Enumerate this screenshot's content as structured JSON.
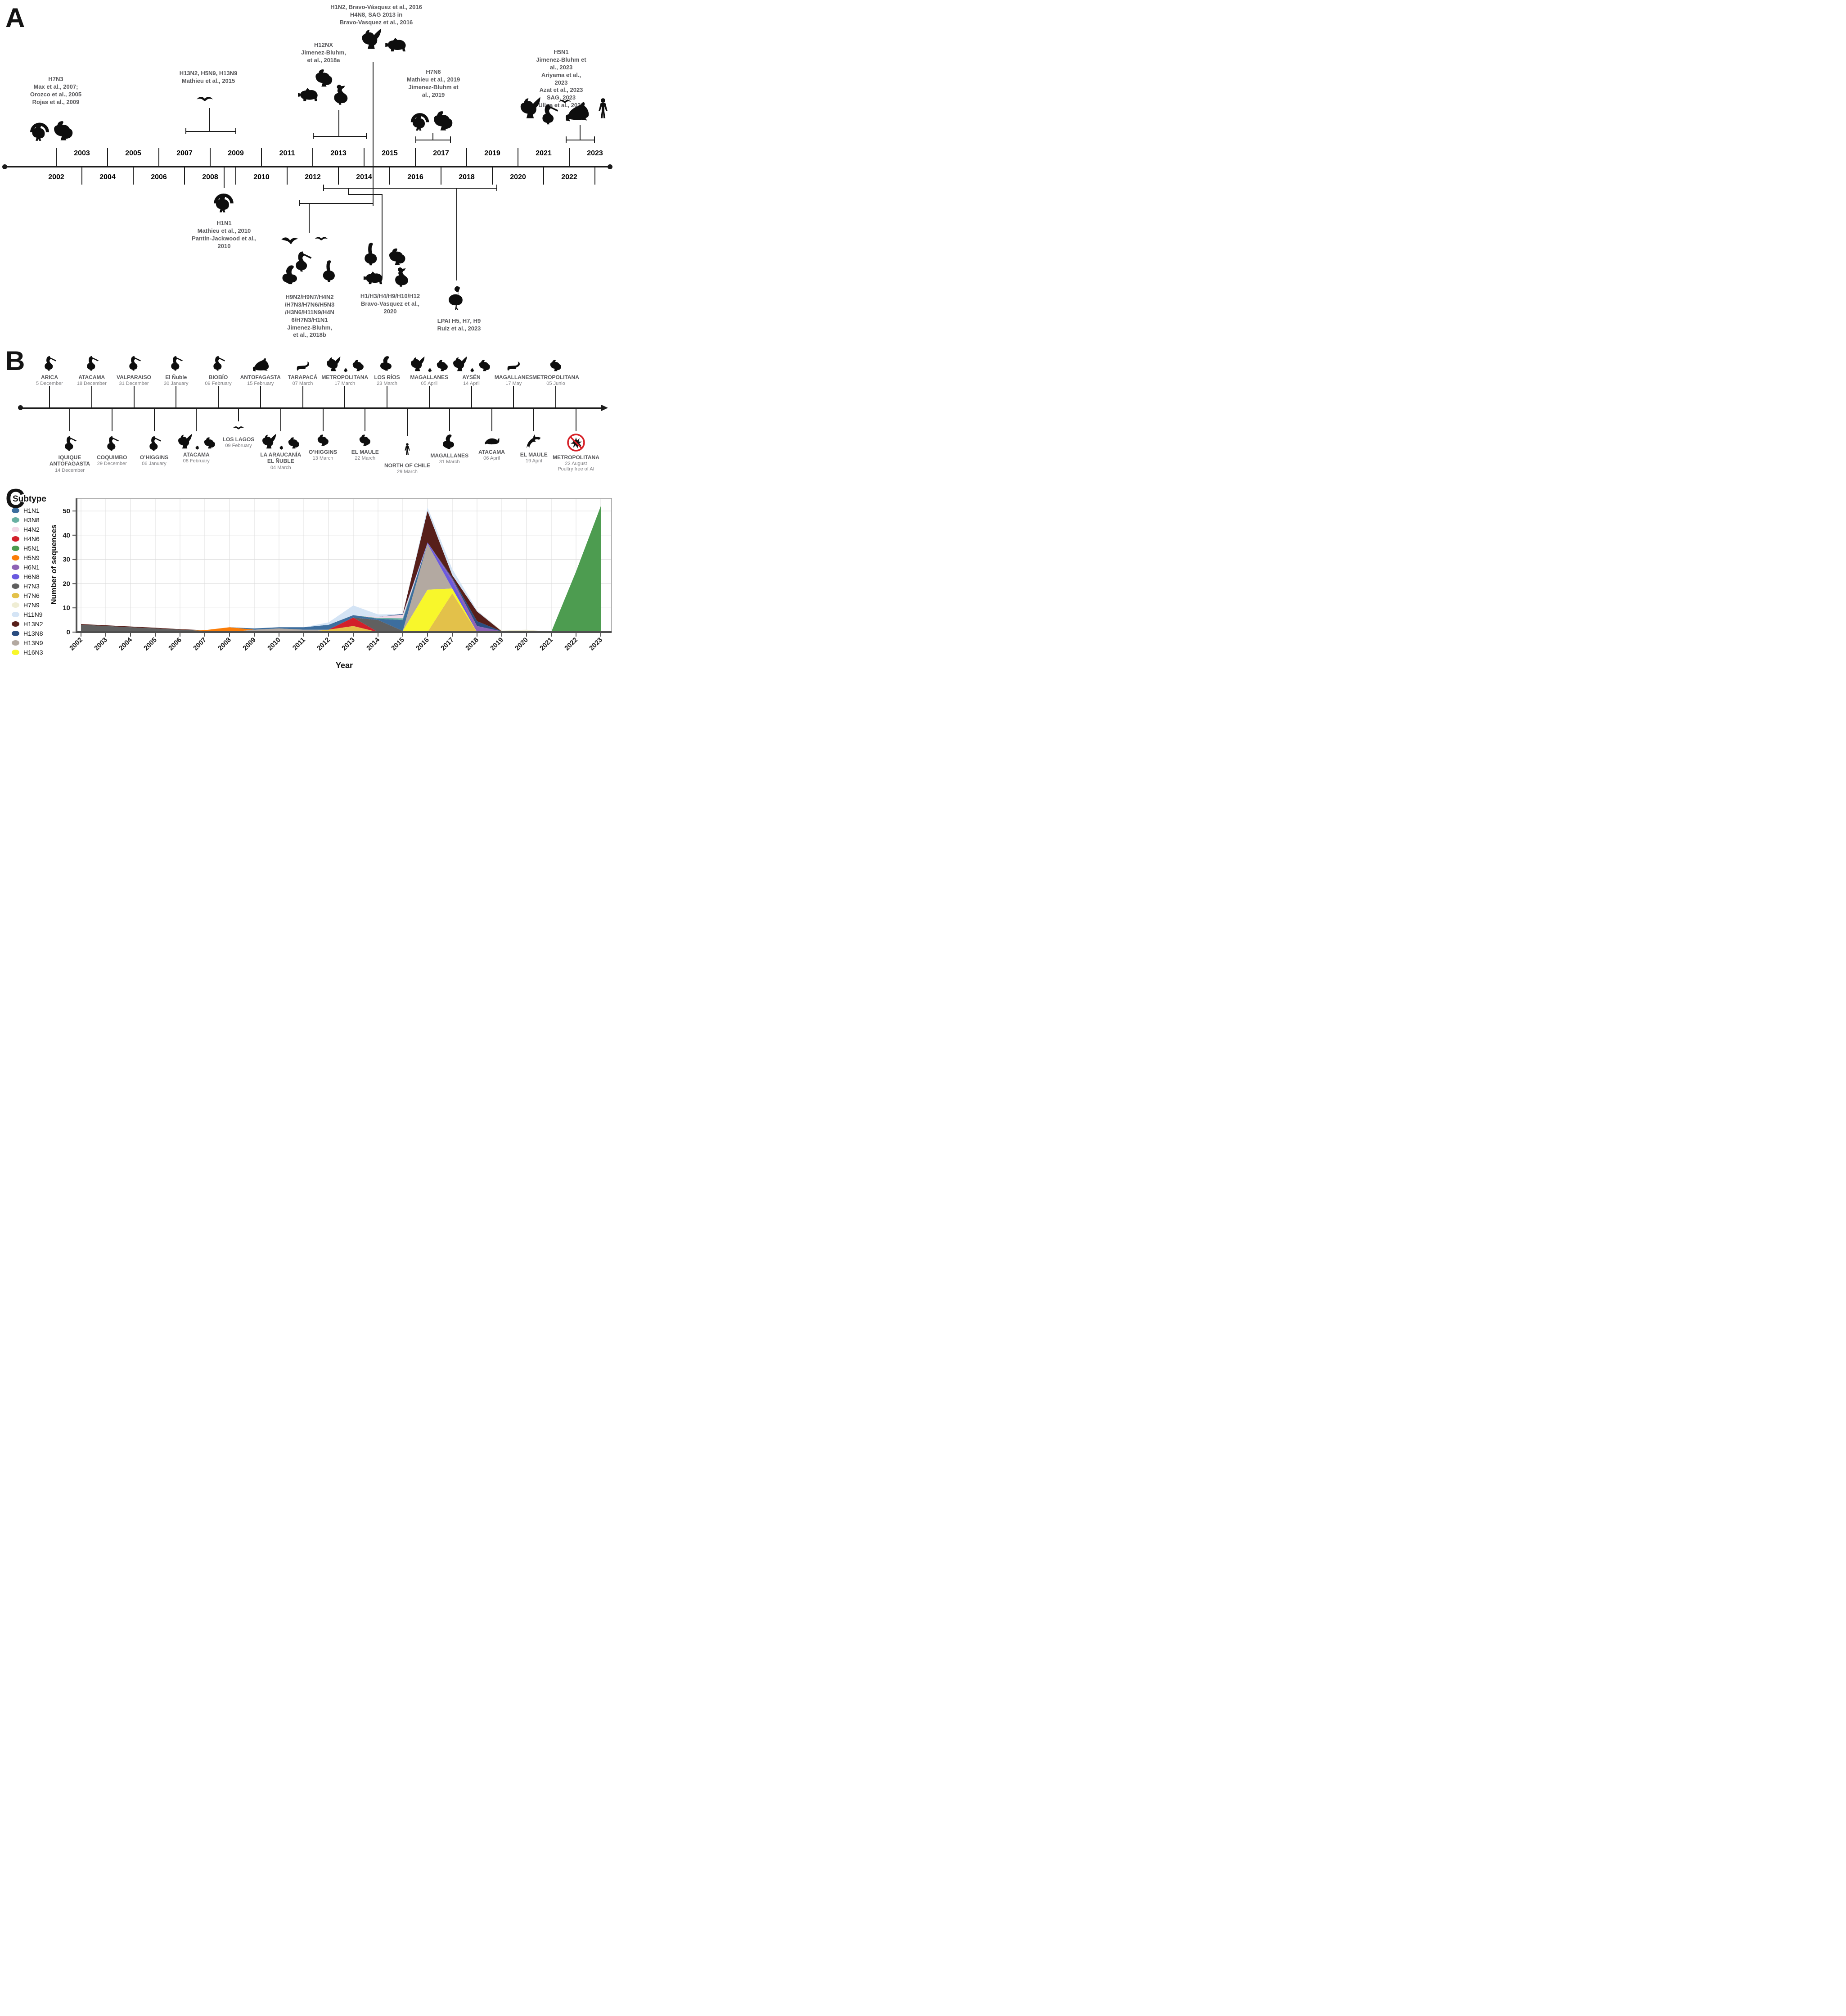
{
  "panelA": {
    "label": "A",
    "years": [
      "2002",
      "2003",
      "2004",
      "2005",
      "2006",
      "2007",
      "2008",
      "2009",
      "2010",
      "2011",
      "2012",
      "2013",
      "2014",
      "2015",
      "2016",
      "2017",
      "2018",
      "2019",
      "2020",
      "2021",
      "2022",
      "2023"
    ],
    "groups": {
      "h7n3": {
        "lines": [
          "H7N3",
          "Max et al., 2007;",
          "Orozco et al., 2005",
          "Rojas et al., 2009"
        ],
        "animals": [
          "turkey",
          "hen"
        ]
      },
      "mathieu2015": {
        "lines": [
          "H13N2, H5N9, H13N9",
          "Mathieu et al., 2015"
        ],
        "animals": [
          "gull"
        ]
      },
      "h12nx": {
        "lines": [
          "H12NX",
          "Jimenez-Bluhm,",
          "et al., 2018a"
        ],
        "animals": [
          "hen",
          "pig",
          "duck"
        ]
      },
      "h1n2": {
        "lines": [
          "H1N2, Bravo-Vásquez et al., 2016",
          "H4N8, SAG 2013 in",
          "Bravo-Vasquez et al., 2016"
        ],
        "animals": [
          "rooster",
          "pig"
        ]
      },
      "h7n6": {
        "lines": [
          "H7N6",
          "Mathieu et al., 2019",
          "Jimenez-Bluhm et",
          "al., 2019"
        ],
        "animals": [
          "turkey",
          "hen"
        ]
      },
      "h5n1": {
        "lines": [
          "H5N1",
          "Jimenez-Bluhm et al., 2023",
          "Ariyama et al., 2023",
          "Azat et al., 2023",
          "SAG, 2023",
          "Ulloa et al., 2023"
        ],
        "animals": [
          "rooster",
          "pelican",
          "gull",
          "sea-lion",
          "human"
        ]
      },
      "h1n1": {
        "lines": [
          "H1N1",
          "Mathieu et al., 2010",
          "Pantin-Jackwood et al.,",
          "2010"
        ],
        "animals": [
          "turkey"
        ]
      },
      "jb2018b": {
        "lines": [
          "H9N2/H9N7/H4N2",
          "/H7N3/H7N6/H5N3",
          "/H3N6/H11N9/H4N",
          "6/H7N3/H1N1",
          "Jimenez-Bluhm,",
          "et al., 2018b"
        ],
        "animals": [
          "flying-bird",
          "gull",
          "pelican",
          "swan",
          "goose"
        ]
      },
      "bv2020": {
        "lines": [
          "H1/H3/H4/H9/H10/H12",
          "Bravo-Vasquez et al.,",
          "2020"
        ],
        "animals": [
          "goose",
          "hen",
          "pig",
          "duck"
        ]
      },
      "ruiz2023": {
        "lines": [
          "LPAI H5, H7, H9",
          "Ruiz et al., 2023"
        ],
        "animals": [
          "flamingo"
        ]
      }
    }
  },
  "panelB": {
    "label": "B",
    "top": [
      {
        "region": [
          "ARICA"
        ],
        "date": "5 December",
        "animals": [
          "pelican"
        ]
      },
      {
        "region": [
          "ATACAMA"
        ],
        "date": "18 December",
        "animals": [
          "pelican"
        ]
      },
      {
        "region": [
          "VALPARAISO"
        ],
        "date": "31 December",
        "animals": [
          "pelican"
        ]
      },
      {
        "region": [
          "El Ñuble"
        ],
        "date": "30 January",
        "animals": [
          "pelican"
        ]
      },
      {
        "region": [
          "BIOBÍO"
        ],
        "date": "09 February",
        "animals": [
          "pelican"
        ]
      },
      {
        "region": [
          "ANTOFAGASTA"
        ],
        "date": "15 February",
        "animals": [
          "sea-lion"
        ]
      },
      {
        "region": [
          "TARAPACÁ"
        ],
        "date": "07 March",
        "animals": [
          "otter"
        ]
      },
      {
        "region": [
          "METROPOLITANA"
        ],
        "date": "17 March",
        "animals": [
          "rooster",
          "chick",
          "hen"
        ]
      },
      {
        "region": [
          "LOS RÍOS"
        ],
        "date": "23 March",
        "animals": [
          "swan"
        ]
      },
      {
        "region": [
          "MAGALLANES"
        ],
        "date": "05 April",
        "animals": [
          "rooster",
          "chick",
          "hen"
        ]
      },
      {
        "region": [
          "AYSÉN"
        ],
        "date": "14 April",
        "animals": [
          "rooster",
          "chick",
          "hen"
        ]
      },
      {
        "region": [
          "MAGALLANES"
        ],
        "date": "17 May",
        "animals": [
          "otter"
        ]
      },
      {
        "region": [
          "METROPOLITANA"
        ],
        "date": "05 Junio",
        "animals": [
          "hen"
        ]
      }
    ],
    "bottom": [
      {
        "region": [
          "IQUIQUE",
          "ANTOFAGASTA"
        ],
        "date": "14 December",
        "animals": [
          "pelican"
        ]
      },
      {
        "region": [
          "COQUIMBO"
        ],
        "date": "29 December",
        "animals": [
          "pelican"
        ]
      },
      {
        "region": [
          "O’HIGGINS"
        ],
        "date": "06 January",
        "animals": [
          "pelican"
        ]
      },
      {
        "region": [
          "ATACAMA"
        ],
        "date": "08 February",
        "animals": [
          "rooster",
          "chick",
          "hen"
        ]
      },
      {
        "region": [
          "LOS LAGOS"
        ],
        "date": "09 February",
        "animals": [
          "gull"
        ]
      },
      {
        "region": [
          "LA ARAUCANÍA",
          "EL ÑUBLE"
        ],
        "date": "04 March",
        "animals": [
          "rooster",
          "chick",
          "hen"
        ]
      },
      {
        "region": [
          "O’HIGGINS"
        ],
        "date": "13 March",
        "animals": [
          "hen"
        ]
      },
      {
        "region": [
          "EL MAULE"
        ],
        "date": "22 March",
        "animals": [
          "hen"
        ]
      },
      {
        "region": [
          "NORTH OF CHILE"
        ],
        "date": "29 March",
        "animals": [
          "human"
        ]
      },
      {
        "region": [
          "MAGALLANES"
        ],
        "date": "31 March",
        "animals": [
          "swan"
        ]
      },
      {
        "region": [
          "ATACAMA"
        ],
        "date": "06 April",
        "animals": [
          "whale"
        ]
      },
      {
        "region": [
          "EL MAULE"
        ],
        "date": "19 April",
        "animals": [
          "dolphin"
        ]
      },
      {
        "region": [
          "METROPOLITANA"
        ],
        "date": "22 August",
        "note": "Poultry free of AI",
        "animals": [
          "virus-banned"
        ]
      }
    ]
  },
  "panelC": {
    "label": "C"
  },
  "icon_names": [
    "turkey",
    "hen",
    "rooster",
    "chick",
    "pig",
    "duck",
    "gull",
    "flying-bird",
    "pelican",
    "swan",
    "goose",
    "flamingo",
    "sea-lion",
    "human",
    "otter",
    "whale",
    "dolphin",
    "virus-banned"
  ],
  "chart_data": {
    "type": "area",
    "stacked": true,
    "title": "",
    "xlabel": "Year",
    "ylabel": "Number of sequences",
    "legend_title": "Subtype",
    "legend_position": "left",
    "grid": true,
    "x": [
      2002,
      2003,
      2004,
      2005,
      2006,
      2007,
      2008,
      2009,
      2010,
      2011,
      2012,
      2013,
      2014,
      2015,
      2016,
      2017,
      2018,
      2019,
      2020,
      2021,
      2022,
      2023
    ],
    "ylim": [
      0,
      55
    ],
    "yticks": [
      0,
      10,
      20,
      30,
      40,
      50
    ],
    "series": [
      {
        "name": "H1N1",
        "color": "#3d6e9e",
        "values": [
          0,
          0,
          0,
          0,
          0,
          0,
          0,
          0.5,
          0.5,
          1,
          2,
          1,
          0.5,
          4.5,
          0,
          0,
          0,
          0,
          0,
          0,
          0,
          0
        ]
      },
      {
        "name": "H3N8",
        "color": "#69b0a2",
        "values": [
          0,
          0,
          0,
          0,
          0,
          0,
          0,
          0,
          0,
          0,
          0,
          0,
          0.3,
          0.7,
          0,
          0,
          0,
          0,
          0,
          0,
          0,
          0
        ]
      },
      {
        "name": "H4N2",
        "color": "#f2d7e6",
        "values": [
          0,
          0,
          0,
          0,
          0,
          0,
          0,
          0,
          0,
          0,
          0,
          0,
          0.5,
          1.5,
          0,
          0,
          0,
          0,
          0,
          0,
          0,
          0
        ]
      },
      {
        "name": "H4N6",
        "color": "#d2202a",
        "values": [
          0,
          0,
          0,
          0,
          0,
          0,
          0,
          0,
          0,
          0,
          0,
          3.5,
          0,
          0,
          0,
          0,
          0,
          0,
          0,
          0,
          0,
          0
        ]
      },
      {
        "name": "H5N1",
        "color": "#4d9c50",
        "values": [
          0,
          0,
          0,
          0,
          0,
          0,
          0,
          0,
          0,
          0,
          0,
          0,
          0,
          0,
          0,
          0,
          0,
          0,
          0,
          0,
          25,
          52
        ]
      },
      {
        "name": "H5N9",
        "color": "#fb7d07",
        "values": [
          0,
          0,
          0,
          0,
          0,
          0.3,
          2,
          0,
          0,
          0,
          0,
          0,
          0,
          0,
          0,
          0,
          0,
          0,
          0,
          0,
          0,
          0
        ]
      },
      {
        "name": "H6N1",
        "color": "#8f63b5",
        "values": [
          0,
          0,
          0,
          0,
          0,
          0,
          0,
          0,
          0,
          0,
          0,
          0,
          0,
          0,
          0,
          1,
          2.5,
          0.3,
          0,
          0,
          0,
          0
        ]
      },
      {
        "name": "H6N8",
        "color": "#6a5ae0",
        "values": [
          0,
          0,
          0,
          0,
          0,
          0,
          0,
          0,
          0,
          0,
          0,
          0,
          0,
          0,
          0.5,
          3,
          0,
          0,
          0,
          0,
          0,
          0
        ]
      },
      {
        "name": "H7N3",
        "color": "#606060",
        "values": [
          3,
          2.5,
          2,
          1.5,
          1,
          0.5,
          0,
          0,
          0,
          0,
          0,
          0,
          5,
          0,
          0,
          0,
          0,
          0,
          0,
          0,
          0,
          0
        ]
      },
      {
        "name": "H7N6",
        "color": "#e3c14a",
        "values": [
          0,
          0,
          0,
          0,
          0,
          0,
          0,
          0,
          0,
          0,
          1,
          2.5,
          0,
          0,
          0,
          16,
          0,
          0,
          0,
          0,
          0,
          0
        ]
      },
      {
        "name": "H7N9",
        "color": "#efedd4",
        "values": [
          0,
          0,
          0,
          0,
          0,
          0,
          0,
          0,
          0,
          0,
          0,
          0,
          0,
          0,
          0,
          0,
          0,
          0.3,
          1,
          0.1,
          0,
          0
        ]
      },
      {
        "name": "H11N9",
        "color": "#d4e4f5",
        "values": [
          0,
          0,
          0,
          0,
          0,
          0,
          0,
          0,
          0,
          0,
          1,
          4,
          1,
          0,
          1.5,
          2.5,
          0.5,
          0,
          0,
          0,
          0,
          0
        ]
      },
      {
        "name": "H13N2",
        "color": "#571f1a",
        "values": [
          0.3,
          0.3,
          0.3,
          0.3,
          0.2,
          0,
          0,
          0,
          0,
          0,
          0,
          0,
          0,
          0,
          13,
          1,
          4,
          0,
          0,
          0,
          0,
          0
        ]
      },
      {
        "name": "H13N8",
        "color": "#2b4d80",
        "values": [
          0,
          0,
          0,
          0,
          0,
          0,
          0,
          0,
          0,
          0,
          0,
          0,
          0,
          0.3,
          0,
          0.5,
          2,
          0,
          0,
          0,
          0,
          0
        ]
      },
      {
        "name": "H13N9",
        "color": "#b3a9a1",
        "values": [
          0,
          0,
          0,
          0,
          0,
          0,
          0,
          1,
          1.5,
          1,
          0,
          0,
          0,
          0,
          19,
          0,
          0,
          0,
          0,
          0,
          0,
          0
        ]
      },
      {
        "name": "H16N3",
        "color": "#f8f72b",
        "values": [
          0,
          0,
          0,
          0,
          0,
          0,
          0,
          0,
          0,
          0,
          0,
          0,
          0,
          0.5,
          17.5,
          2,
          0,
          0,
          0,
          0,
          0,
          0
        ]
      }
    ],
    "stack_order": [
      "H7N6",
      "H4N6",
      "H16N3",
      "H13N9",
      "H7N3",
      "H5N9",
      "H1N1",
      "H3N8",
      "H4N2",
      "H6N8",
      "H6N1",
      "H13N8",
      "H13N2",
      "H11N9",
      "H7N9",
      "H5N1"
    ]
  }
}
